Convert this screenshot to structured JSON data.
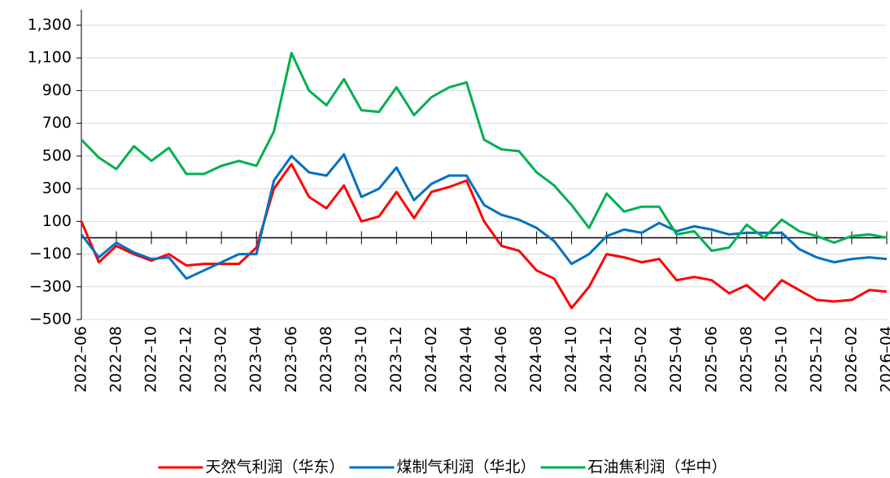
{
  "chart_data": {
    "type": "line",
    "categories": [
      "2022–06",
      null,
      "2022–08",
      null,
      "2022–10",
      null,
      "2022–12",
      null,
      "2023–02",
      null,
      "2023–04",
      null,
      "2023–06",
      null,
      "2023–08",
      null,
      "2023–10",
      null,
      "2023–12",
      null,
      "2024–02",
      null,
      "2024–04",
      null,
      "2024–06",
      null,
      "2024–08",
      null,
      "2024–10",
      null,
      "2024–12",
      null,
      "2025–02",
      null,
      "2025–04",
      null,
      "2025–06",
      null,
      "2025–08",
      null,
      "2025–10",
      null,
      "2025–12",
      null,
      "2026–02",
      null,
      "2026–04"
    ],
    "series": [
      {
        "name": "天然气利润（华东）",
        "color": "#ff0000",
        "values": [
          100,
          -150,
          -50,
          -100,
          -140,
          -100,
          -170,
          -160,
          -160,
          -160,
          -60,
          300,
          450,
          250,
          180,
          320,
          100,
          130,
          280,
          120,
          280,
          310,
          350,
          100,
          -50,
          -80,
          -200,
          -250,
          -430,
          -300,
          -100,
          -120,
          -150,
          -130,
          -260,
          -240,
          -260,
          -340,
          -290,
          -380,
          -260,
          -320,
          -380,
          -390,
          -380,
          -320,
          -330
        ]
      },
      {
        "name": "煤制气利润（华北）",
        "color": "#0070c0",
        "values": [
          20,
          -120,
          -30,
          -90,
          -130,
          -120,
          -250,
          -200,
          -150,
          -100,
          -100,
          350,
          500,
          400,
          380,
          510,
          250,
          300,
          430,
          230,
          330,
          380,
          380,
          200,
          140,
          110,
          60,
          -20,
          -160,
          -100,
          10,
          50,
          30,
          90,
          40,
          70,
          50,
          20,
          30,
          30,
          30,
          -70,
          -120,
          -150,
          -130,
          -120,
          -130
        ]
      },
      {
        "name": "石油焦利润（华中）",
        "color": "#00b050",
        "values": [
          600,
          490,
          420,
          560,
          470,
          550,
          390,
          390,
          440,
          470,
          440,
          650,
          1130,
          900,
          810,
          970,
          780,
          770,
          920,
          750,
          860,
          920,
          950,
          600,
          540,
          530,
          400,
          320,
          200,
          60,
          270,
          160,
          190,
          190,
          20,
          40,
          -80,
          -60,
          80,
          0,
          110,
          40,
          10,
          -30,
          10,
          20,
          0
        ]
      }
    ],
    "ylim": [
      -500,
      1300
    ],
    "yticks": [
      {
        "value": -500,
        "label": "−500"
      },
      {
        "value": -300,
        "label": "−300"
      },
      {
        "value": -100,
        "label": "−100"
      },
      100,
      300,
      500,
      700,
      900,
      {
        "value": 1100,
        "label": "1,100"
      },
      {
        "value": 1300,
        "label": "1,300"
      }
    ],
    "grid": true,
    "legend": "bottom"
  }
}
